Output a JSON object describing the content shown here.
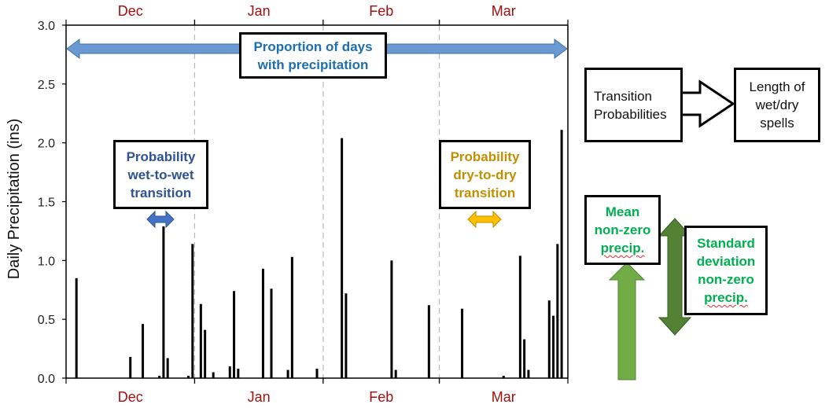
{
  "chart_data": {
    "type": "bar",
    "ylabel": "Daily Precipitation (ins)",
    "xlabel": "",
    "ylim": [
      0,
      3.0
    ],
    "yticks": [
      "0.0",
      "0.5",
      "1.0",
      "1.5",
      "2.0",
      "2.5",
      "3.0"
    ],
    "x_unit": "day of season (Dec 1 = day 1)",
    "xlim": [
      0,
      121
    ],
    "months": [
      {
        "name": "Dec",
        "start_day": 0,
        "end_day": 31
      },
      {
        "name": "Jan",
        "start_day": 31,
        "end_day": 62
      },
      {
        "name": "Feb",
        "start_day": 62,
        "end_day": 90
      },
      {
        "name": "Mar",
        "start_day": 90,
        "end_day": 121
      }
    ],
    "month_color": "#a01010",
    "bars": [
      {
        "day": 2.5,
        "value": 0.85
      },
      {
        "day": 15.5,
        "value": 0.18
      },
      {
        "day": 18.5,
        "value": 0.46
      },
      {
        "day": 22.5,
        "value": 0.02
      },
      {
        "day": 23.5,
        "value": 1.29
      },
      {
        "day": 24.5,
        "value": 0.17
      },
      {
        "day": 29.5,
        "value": 0.02
      },
      {
        "day": 30.5,
        "value": 1.14
      },
      {
        "day": 32.5,
        "value": 0.63
      },
      {
        "day": 33.5,
        "value": 0.41
      },
      {
        "day": 35.5,
        "value": 0.05
      },
      {
        "day": 39.5,
        "value": 0.1
      },
      {
        "day": 40.5,
        "value": 0.74
      },
      {
        "day": 41.5,
        "value": 0.08
      },
      {
        "day": 47.5,
        "value": 0.93
      },
      {
        "day": 49.5,
        "value": 0.76
      },
      {
        "day": 53.5,
        "value": 0.07
      },
      {
        "day": 54.5,
        "value": 1.03
      },
      {
        "day": 60.5,
        "value": 0.08
      },
      {
        "day": 66.5,
        "value": 2.04
      },
      {
        "day": 67.5,
        "value": 0.72
      },
      {
        "day": 78.5,
        "value": 1.0
      },
      {
        "day": 79.5,
        "value": 0.07
      },
      {
        "day": 87.5,
        "value": 0.62
      },
      {
        "day": 95.5,
        "value": 0.59
      },
      {
        "day": 105.5,
        "value": 0.02
      },
      {
        "day": 109.5,
        "value": 1.04
      },
      {
        "day": 110.5,
        "value": 0.33
      },
      {
        "day": 111.5,
        "value": 0.07
      },
      {
        "day": 116.5,
        "value": 0.66
      },
      {
        "day": 117.5,
        "value": 0.53
      },
      {
        "day": 118.5,
        "value": 1.14
      },
      {
        "day": 119.5,
        "value": 2.11
      }
    ],
    "annotations": {
      "proportion": {
        "lines": [
          "Proportion of days",
          "with precipitation"
        ],
        "color": "#1e6fb0"
      },
      "wet_to_wet": {
        "lines": [
          "Probability",
          "wet-to-wet",
          "transition"
        ],
        "color": "#2f5391"
      },
      "dry_to_dry": {
        "lines": [
          "Probability",
          "dry-to-dry",
          "transition"
        ],
        "color": "#bf9000"
      },
      "transition_probabilities": {
        "lines": [
          "Transition",
          "Probabilities"
        ]
      },
      "spell_length": {
        "lines": [
          "Length of",
          "wet/dry",
          "spells"
        ]
      },
      "mean": {
        "lines": [
          "Mean",
          "non-zero",
          "precip."
        ],
        "color": "#00b050"
      },
      "std": {
        "lines": [
          "Standard",
          "deviation",
          "non-zero",
          "precip."
        ],
        "color": "#00b050"
      }
    },
    "arrow_colors": {
      "proportion": "#6b9ad3",
      "wet_to_wet": "#4472c4",
      "dry_to_dry": "#ffc000",
      "mean": "#70ad47",
      "std": "#548235"
    }
  }
}
